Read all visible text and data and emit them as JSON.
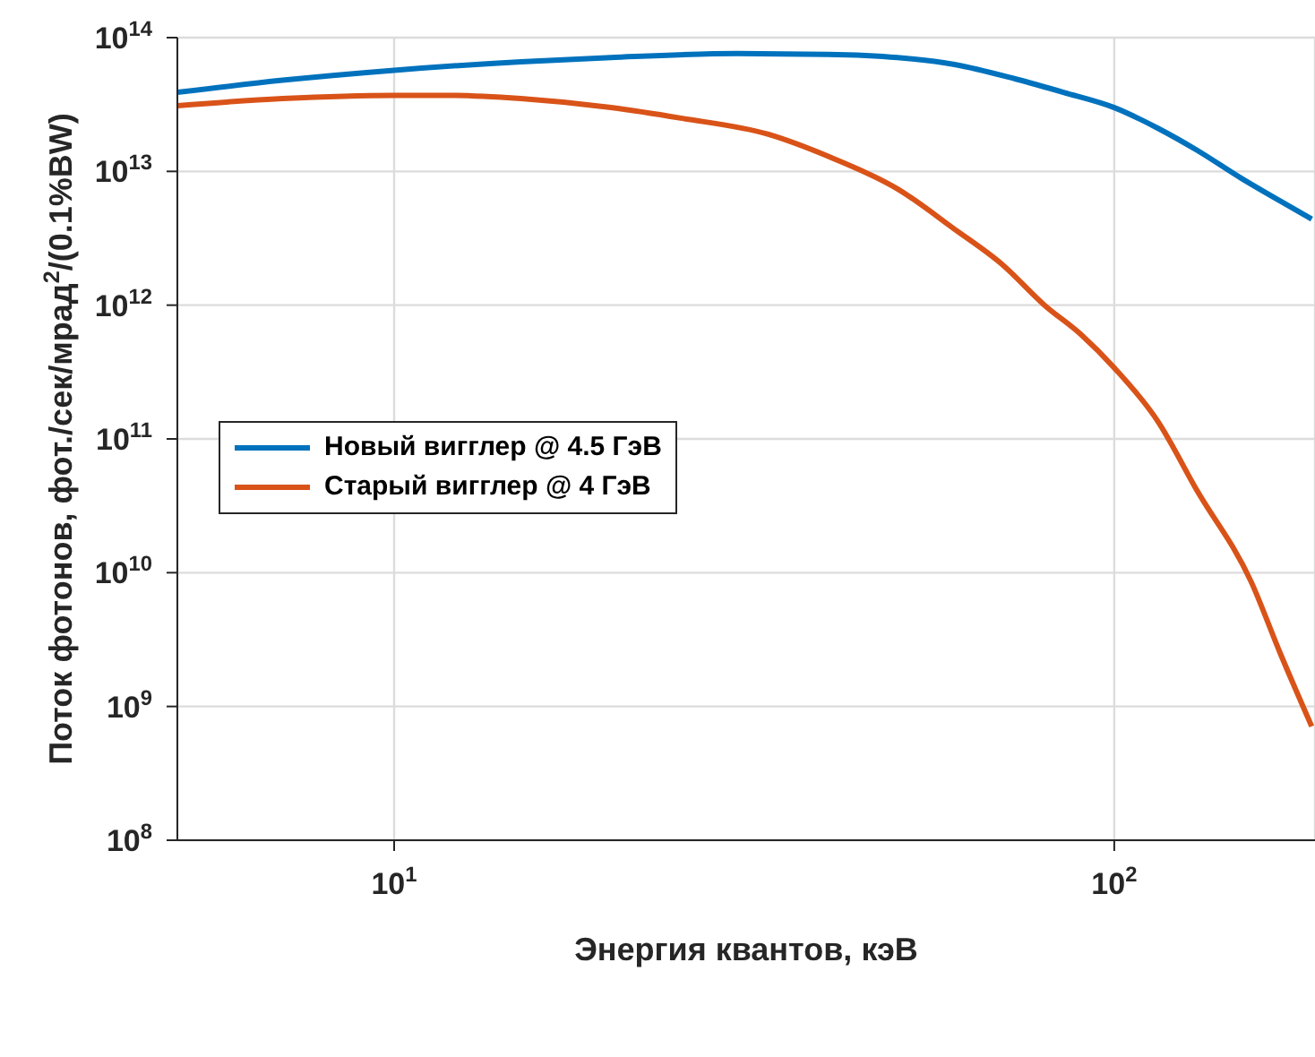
{
  "chart_data": {
    "type": "line",
    "xlabel": "Энергия квантов, кэВ",
    "ylabel": "Поток фотонов, фот./сек/мрад$^{2}$/(0.1%BW)",
    "log": "xy",
    "grid": true,
    "legend": "left",
    "line_style": "solid",
    "marker": "none",
    "xlim": [
      5,
      190
    ],
    "xticks": [
      {
        "value": 10,
        "label": "10$^{1}$"
      },
      {
        "value": 100,
        "label": "10$^{2}$"
      }
    ],
    "ylim": [
      100000000.0,
      100000000000000.0
    ],
    "yticks": [
      {
        "value": 100000000.0,
        "label": "10$^{8}$"
      },
      {
        "value": 1000000000.0,
        "label": "10$^{9}$"
      },
      {
        "value": 10000000000.0,
        "label": "10$^{10}$"
      },
      {
        "value": 100000000000.0,
        "label": "10$^{11}$"
      },
      {
        "value": 1000000000000.0,
        "label": "10$^{12}$"
      },
      {
        "value": 10000000000000.0,
        "label": "10$^{13}$"
      },
      {
        "value": 100000000000000.0,
        "label": "10$^{14}$"
      }
    ],
    "series": [
      {
        "name": "Новый вигглер @ 4.5 ГэВ",
        "color": "#0072bd",
        "x": [
          5,
          7,
          10,
          15,
          20,
          30,
          40,
          50,
          60,
          73,
          85,
          100,
          115,
          130,
          150,
          170,
          188
        ],
        "values": [
          39000000000000.0,
          48000000000000.0,
          57000000000000.0,
          66000000000000.0,
          71000000000000.0,
          76000000000000.0,
          75000000000000.0,
          71000000000000.0,
          63000000000000.0,
          49000000000000.0,
          39000000000000.0,
          30000000000000.0,
          21000000000000.0,
          14500000000000.0,
          8900000000000.0,
          6000000000000.0,
          4400000000000.0
        ]
      },
      {
        "name": "Старый вигглер @ 4 ГэВ",
        "color": "#d95319",
        "x": [
          5,
          7,
          10,
          12,
          15,
          20,
          25,
          33,
          40,
          50,
          60,
          70,
          80,
          90,
          100,
          115,
          130,
          155,
          170,
          188
        ],
        "values": [
          31000000000000.0,
          35000000000000.0,
          37000000000000.0,
          37000000000000.0,
          35000000000000.0,
          30000000000000.0,
          25000000000000.0,
          19000000000000.0,
          13000000000000.0,
          7400000000000.0,
          3700000000000.0,
          2000000000000.0,
          1000000000000.0,
          600000000000.0,
          340000000000.0,
          135000000000.0,
          42000000000.0,
          8500000000.0,
          2500000000.0,
          710000000.0
        ]
      }
    ]
  }
}
